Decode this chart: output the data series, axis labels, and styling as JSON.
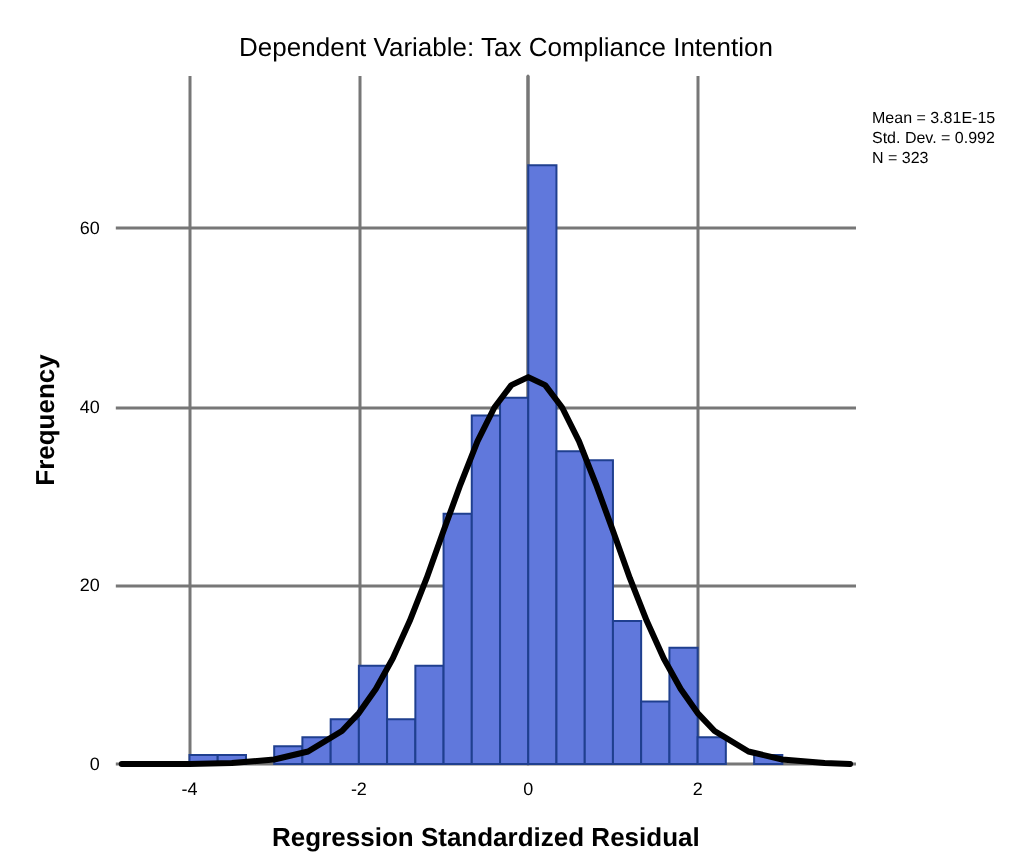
{
  "chart_data": {
    "type": "histogram",
    "title": "Dependent Variable: Tax Compliance Intention",
    "xlabel": "Regression Standardized Residual",
    "ylabel": "Frequency",
    "bins": [
      -4,
      -3.667,
      -3.333,
      -3,
      -2.667,
      -2.333,
      -2,
      -1.667,
      -1.333,
      -1,
      -0.667,
      -0.333,
      0,
      0.333,
      0.667,
      1,
      1.333,
      1.667,
      2,
      2.333,
      2.667,
      3
    ],
    "series": [
      {
        "color": "#6078dc",
        "values": [
          1,
          1,
          0,
          2,
          3,
          5,
          11,
          5,
          11,
          28,
          39,
          41,
          67,
          35,
          34,
          16,
          7,
          13,
          3,
          0,
          1
        ]
      },
      {
        "type": "line",
        "color": "#000000",
        "x": [
          -4.8,
          -4,
          -3.5,
          -3,
          -2.6,
          -2.2,
          -2,
          -1.8,
          -1.6,
          -1.4,
          -1.2,
          -1,
          -0.8,
          -0.6,
          -0.4,
          -0.2,
          0,
          0.2,
          0.4,
          0.6,
          0.8,
          1,
          1.2,
          1.4,
          1.6,
          1.8,
          2,
          2.2,
          2.6,
          3,
          3.5,
          3.8
        ],
        "values": [
          0,
          0,
          0.1,
          0.5,
          1.4,
          3.7,
          5.7,
          8.4,
          11.8,
          16,
          20.8,
          26.1,
          31.3,
          36.1,
          39.9,
          42.4,
          43.3,
          42.4,
          39.9,
          36.1,
          31.3,
          26.1,
          20.8,
          16,
          11.8,
          8.4,
          5.7,
          3.7,
          1.4,
          0.5,
          0.1,
          0
        ]
      }
    ],
    "xlim": [
      -4.87,
      3.87
    ],
    "ylim": [
      0,
      77
    ],
    "xticks": [
      -4,
      -2,
      0,
      2
    ],
    "yticks": [
      0,
      20,
      40,
      60
    ],
    "grid": true,
    "marker": "none",
    "line_style": "solid",
    "annotations": [
      "Mean = 3.81E-15",
      "Std. Dev. = 0.992",
      "N = 323"
    ]
  }
}
